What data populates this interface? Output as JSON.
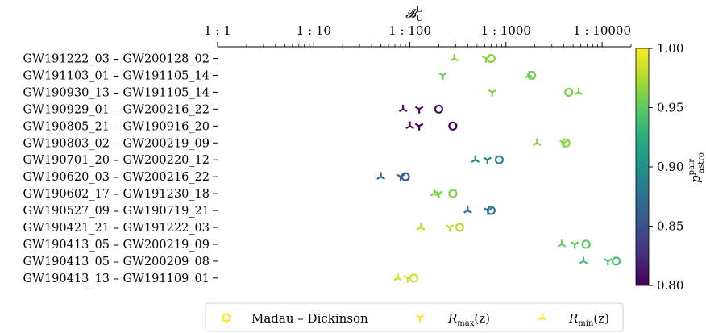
{
  "chart_data": {
    "type": "scatter",
    "title": "",
    "x_axis": {
      "label": "𝓑ᴸ_U",
      "label_main": "𝓑",
      "label_sup": "L",
      "label_sub": "U",
      "scale": "log",
      "position": "top",
      "range": [
        1,
        20000
      ],
      "ticks": [
        {
          "value": 1,
          "label": "1 : 1"
        },
        {
          "value": 10,
          "label": "1 : 10"
        },
        {
          "value": 100,
          "label": "1 : 100"
        },
        {
          "value": 1000,
          "label": "1 : 1000"
        },
        {
          "value": 10000,
          "label": "1 : 10000"
        }
      ]
    },
    "categories": [
      "GW191222_03 – GW200128_02",
      "GW191103_01 – GW191105_14",
      "GW190930_13 – GW191105_14",
      "GW190929_01 – GW200216_22",
      "GW190805_21 – GW190916_20",
      "GW190803_02 – GW200219_09",
      "GW190701_20 – GW200220_12",
      "GW190620_03 – GW200216_22",
      "GW190602_17 – GW191230_18",
      "GW190527_09 – GW190719_21",
      "GW190421_21 – GW191222_03",
      "GW190413_05 – GW200219_09",
      "GW190413_05 – GW200209_08",
      "GW190413_13 – GW191109_01"
    ],
    "series": [
      {
        "name": "Madau – Dickinson",
        "marker": "circle",
        "values": [
          700,
          1850,
          4500,
          200,
          280,
          4200,
          850,
          90,
          280,
          700,
          330,
          6800,
          14000,
          110
        ]
      },
      {
        "name": "R_max(z)",
        "marker": "tri_down",
        "values": [
          620,
          220,
          720,
          125,
          125,
          4000,
          640,
          80,
          200,
          650,
          260,
          5200,
          11500,
          95
        ]
      },
      {
        "name": "R_min(z)",
        "marker": "tri_up",
        "values": [
          290,
          1750,
          5700,
          85,
          100,
          2100,
          480,
          50,
          180,
          400,
          130,
          3800,
          6400,
          75
        ]
      }
    ],
    "color": [
      0.965,
      0.955,
      0.96,
      0.81,
      0.8,
      0.965,
      0.89,
      0.86,
      0.96,
      0.88,
      0.98,
      0.95,
      0.94,
      0.985
    ],
    "colorbar": {
      "label": "p^pair_astro",
      "label_main": "p",
      "label_sup": "pair",
      "label_sub": "astro",
      "range": [
        0.8,
        1.0
      ],
      "ticks": [
        "0.80",
        "0.85",
        "0.90",
        "0.95",
        "1.00"
      ],
      "colormap": "viridis"
    },
    "legend": {
      "placement": "bottom",
      "entries": [
        "Madau – Dickinson",
        "R_max(z)",
        "R_min(z)"
      ],
      "entry_main": [
        "Madau – Dickinson",
        "R",
        "R"
      ],
      "entry_sub": [
        "",
        "max",
        "min"
      ],
      "entry_tail": [
        "",
        "(z)",
        "(z)"
      ]
    },
    "grid": false
  }
}
